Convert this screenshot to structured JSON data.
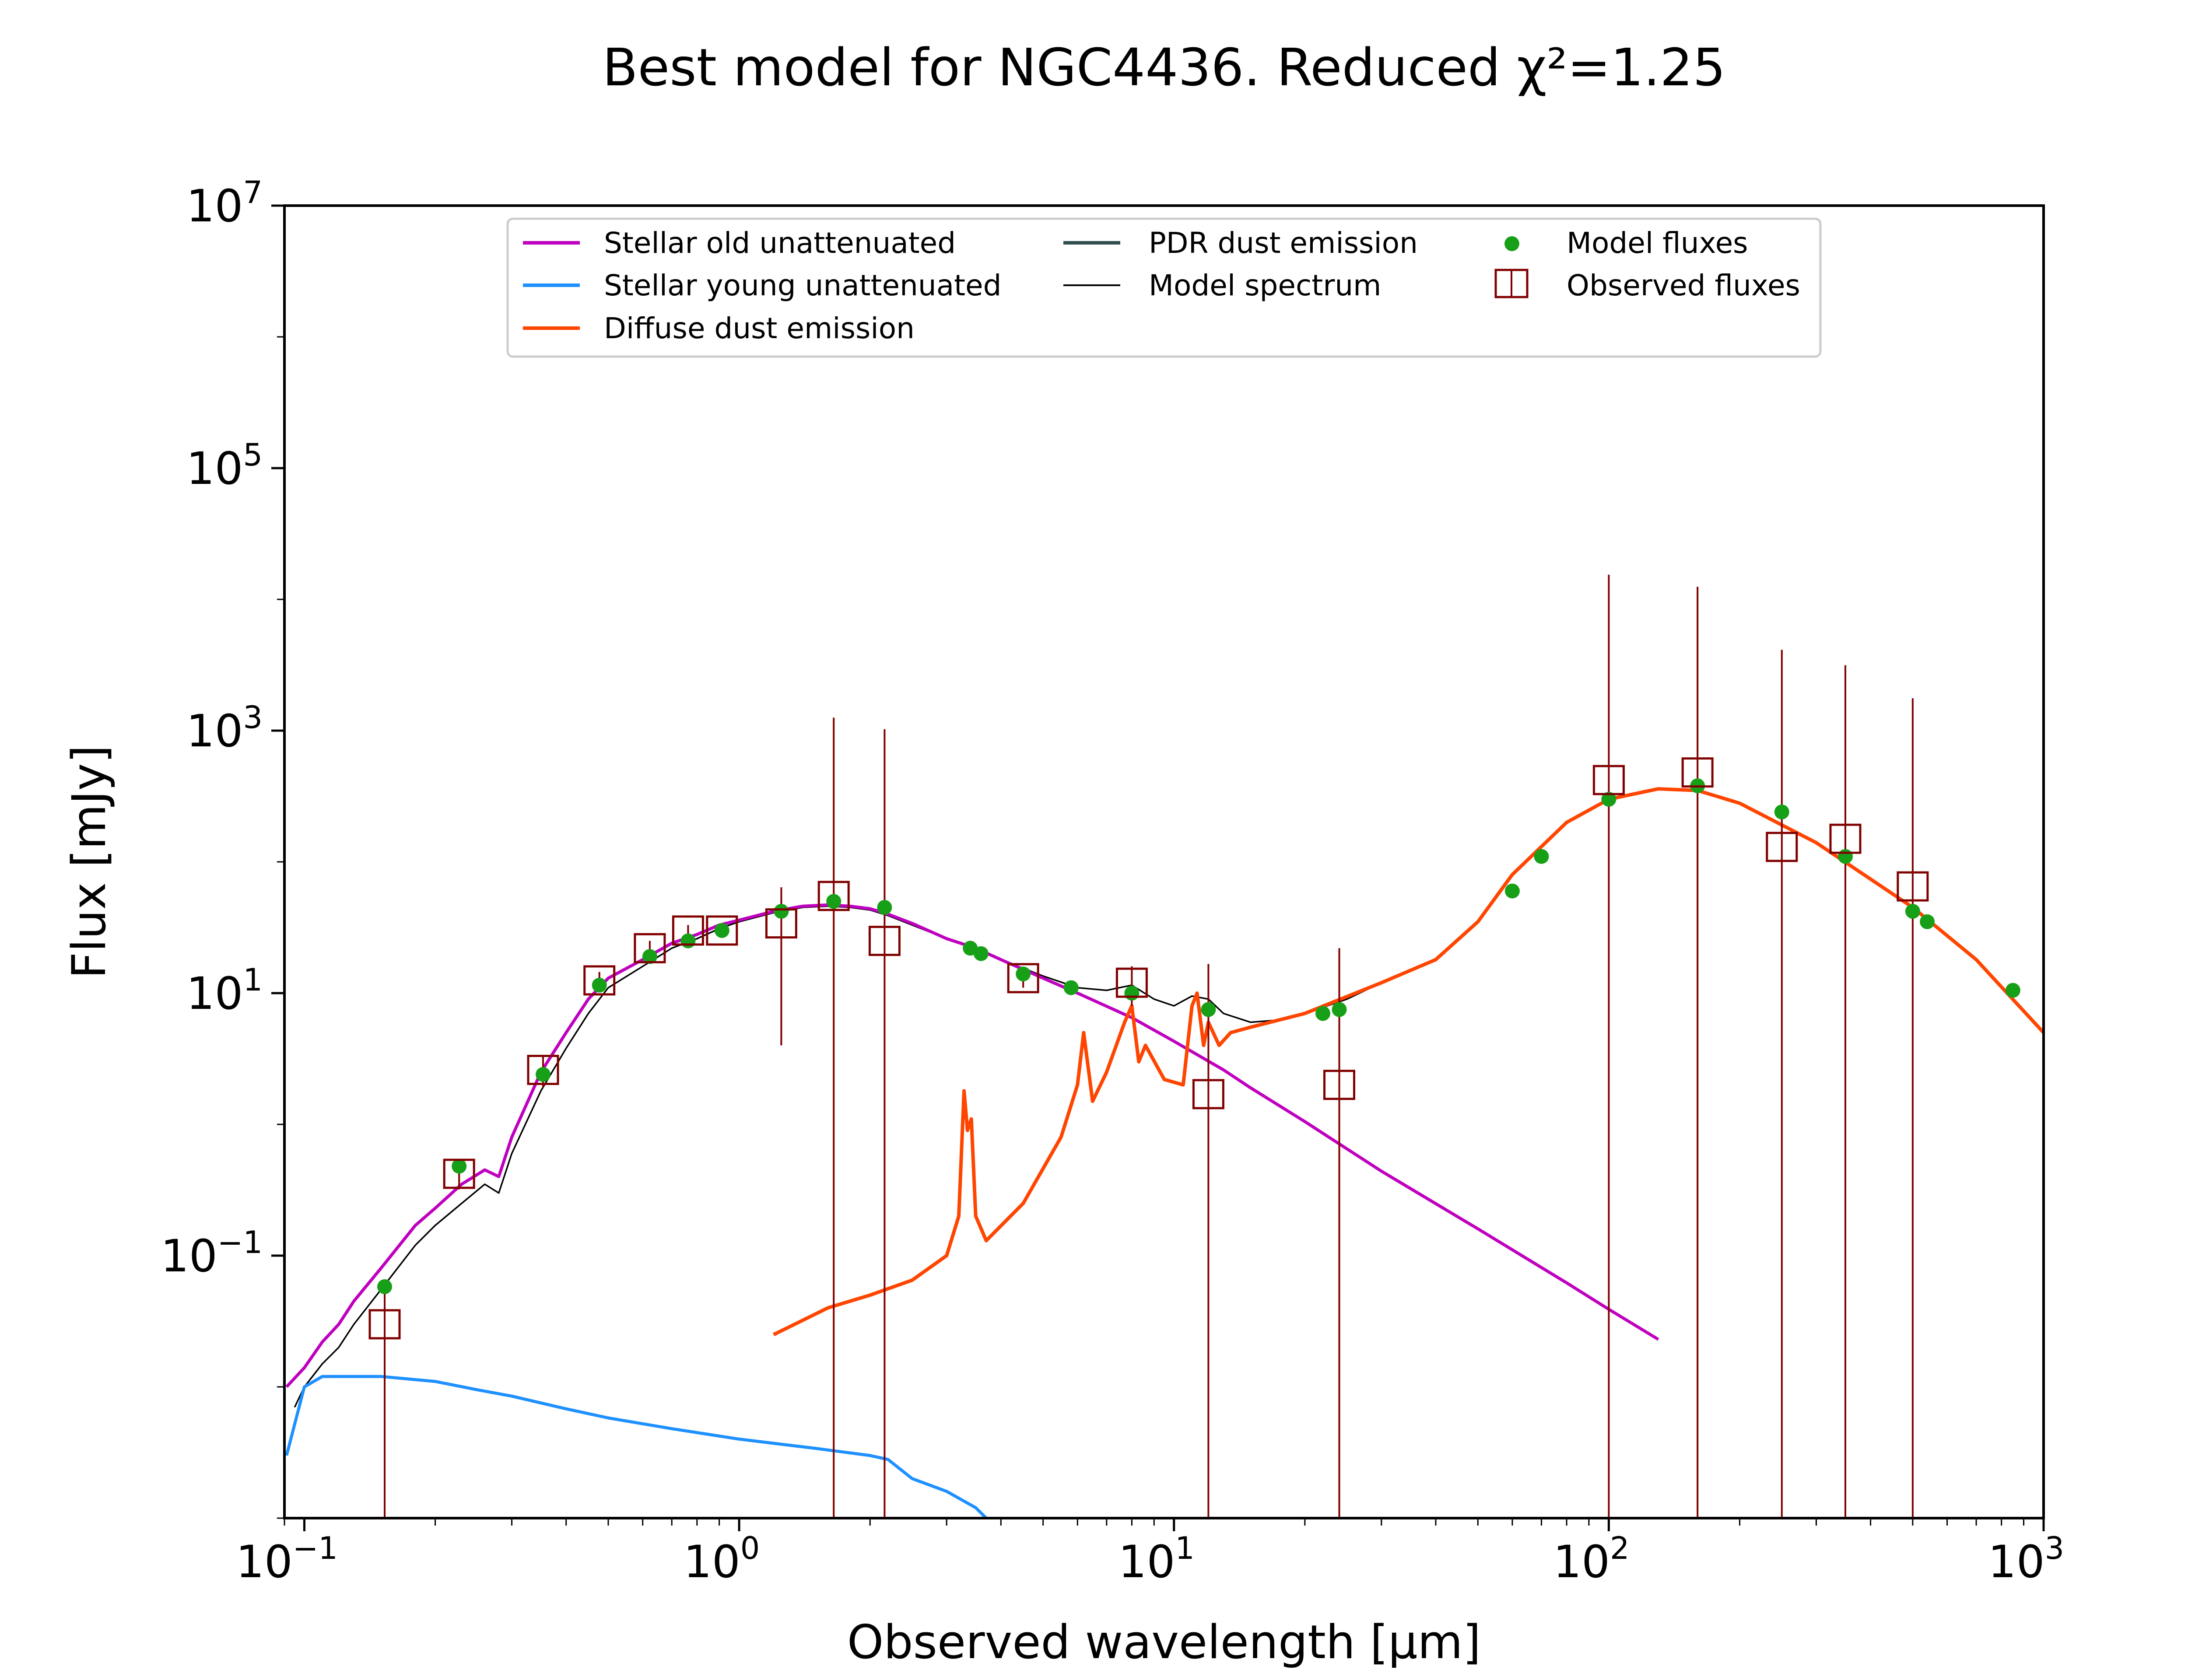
{
  "chart_data": {
    "type": "line",
    "title": "Best model for NGC4436. Reduced χ²=1.25",
    "xlabel": "Observed wavelength [μm]",
    "ylabel": "Flux [mJy]",
    "xscale": "log",
    "yscale": "log",
    "xlim": [
      0.09,
      1000
    ],
    "ylim": [
      0.001,
      10000000
    ],
    "x_ticks": [
      "10⁻¹",
      "10⁰",
      "10¹",
      "10²",
      "10³"
    ],
    "y_ticks": [
      "10⁻¹",
      "10¹",
      "10³",
      "10⁵",
      "10⁷"
    ],
    "grid": false,
    "legend_position": "top-center",
    "series": [
      {
        "name": "Stellar old unattenuated",
        "color": "#bf00bf",
        "x": [
          0.091,
          0.1,
          0.11,
          0.12,
          0.13,
          0.15,
          0.18,
          0.2,
          0.23,
          0.26,
          0.28,
          0.3,
          0.35,
          0.4,
          0.45,
          0.5,
          0.6,
          0.7,
          0.8,
          0.9,
          1.0,
          1.2,
          1.4,
          1.6,
          1.8,
          2.0,
          2.2,
          2.5,
          3.0,
          3.5,
          4.0,
          5.0,
          6.0,
          8.0,
          10.0,
          13.0,
          15.0,
          20.0,
          30.0,
          50.0,
          80.0,
          100.0,
          130.0
        ],
        "y": [
          0.01,
          0.014,
          0.022,
          0.03,
          0.045,
          0.08,
          0.17,
          0.23,
          0.35,
          0.45,
          0.4,
          0.8,
          2.5,
          5.0,
          9.0,
          13.0,
          18.0,
          24.0,
          28.0,
          33.0,
          36.0,
          42.0,
          46.0,
          47.0,
          46.0,
          44.0,
          40.0,
          34.0,
          26.0,
          22.0,
          18.0,
          13.0,
          10.0,
          6.5,
          4.3,
          2.6,
          1.9,
          1.05,
          0.44,
          0.16,
          0.062,
          0.039,
          0.023
        ]
      },
      {
        "name": "Stellar young unattenuated",
        "color": "#1e90ff",
        "x": [
          0.091,
          0.1,
          0.11,
          0.13,
          0.15,
          0.2,
          0.25,
          0.3,
          0.4,
          0.5,
          0.7,
          1.0,
          1.5,
          2.0,
          2.2,
          2.5,
          3.0,
          3.5,
          3.7
        ],
        "y": [
          0.003,
          0.01,
          0.012,
          0.012,
          0.012,
          0.011,
          0.0095,
          0.0085,
          0.0068,
          0.0058,
          0.0048,
          0.004,
          0.0034,
          0.003,
          0.0028,
          0.002,
          0.0016,
          0.0012,
          0.001
        ]
      },
      {
        "name": "Diffuse dust emission",
        "color": "#ff4500",
        "x": [
          1.2,
          1.6,
          2.0,
          2.5,
          3.0,
          3.2,
          3.29,
          3.35,
          3.42,
          3.5,
          3.7,
          4.5,
          5.5,
          6.0,
          6.2,
          6.5,
          7.0,
          7.7,
          8.0,
          8.3,
          8.6,
          9.5,
          10.5,
          11.0,
          11.3,
          11.7,
          12.0,
          12.7,
          13.5,
          15.0,
          20.0,
          30.0,
          40.0,
          50.0,
          60.0,
          80.0,
          100.0,
          130.0,
          160.0,
          200.0,
          300.0,
          500.0,
          700.0,
          1000.0
        ],
        "y": [
          0.025,
          0.04,
          0.05,
          0.065,
          0.1,
          0.2,
          1.8,
          0.9,
          1.1,
          0.2,
          0.13,
          0.25,
          0.8,
          2.0,
          5.0,
          1.5,
          2.5,
          6.0,
          8.0,
          3.0,
          4.0,
          2.2,
          2.0,
          8.0,
          10.0,
          4.0,
          6.0,
          4.0,
          5.0,
          5.5,
          7.0,
          12.0,
          18.0,
          35.0,
          80.0,
          200.0,
          300.0,
          360.0,
          350.0,
          280.0,
          140.0,
          45.0,
          18.0,
          5.0
        ]
      },
      {
        "name": "PDR dust emission",
        "color": "#2f4f4f",
        "x": [],
        "y": []
      },
      {
        "name": "Model spectrum",
        "color": "#000000",
        "x": [
          0.095,
          0.1,
          0.11,
          0.12,
          0.13,
          0.15,
          0.18,
          0.2,
          0.23,
          0.26,
          0.28,
          0.3,
          0.35,
          0.4,
          0.45,
          0.5,
          0.6,
          0.7,
          0.8,
          0.9,
          1.0,
          1.2,
          1.4,
          1.6,
          1.8,
          2.0,
          2.2,
          2.5,
          3.0,
          3.5,
          4.0,
          5.0,
          6.0,
          7.0,
          8.0,
          9.0,
          10.0,
          11.0,
          12.0,
          13.0,
          15.0,
          17.0,
          20.0,
          25.0,
          30.0,
          40.0,
          50.0,
          60.0,
          80.0,
          100.0,
          130.0,
          160.0,
          200.0,
          300.0,
          500.0,
          700.0,
          1000.0
        ],
        "y": [
          0.007,
          0.01,
          0.015,
          0.02,
          0.03,
          0.055,
          0.12,
          0.17,
          0.25,
          0.35,
          0.3,
          0.6,
          1.8,
          3.8,
          7.0,
          11.0,
          16.0,
          22.0,
          26.0,
          31.0,
          35.0,
          41.0,
          45.0,
          46.0,
          45.0,
          43.0,
          39.0,
          33.0,
          26.0,
          22.0,
          18.0,
          13.5,
          11.0,
          10.5,
          11.5,
          9.0,
          8.0,
          9.5,
          9.0,
          7.0,
          6.0,
          6.2,
          7.0,
          9.0,
          12.0,
          18.0,
          35.0,
          80.0,
          200.0,
          300.0,
          360.0,
          350.0,
          280.0,
          140.0,
          45.0,
          18.0,
          5.0
        ]
      }
    ],
    "model_fluxes": {
      "name": "Model fluxes",
      "color": "#17a017",
      "x": [
        0.153,
        0.227,
        0.354,
        0.477,
        0.623,
        0.763,
        0.913,
        1.25,
        1.65,
        2.16,
        3.4,
        3.6,
        4.5,
        5.8,
        8.0,
        12.0,
        22.0,
        24.0,
        60.0,
        70.0,
        100.0,
        160.0,
        250.0,
        350.0,
        500.0,
        540.0,
        850.0
      ],
      "y": [
        0.058,
        0.48,
        2.4,
        11.5,
        19.0,
        25.0,
        30.0,
        42.0,
        50.0,
        45.0,
        22.0,
        20.0,
        14.0,
        11.0,
        10.0,
        7.5,
        7.0,
        7.5,
        60.0,
        110.0,
        300.0,
        380.0,
        240.0,
        110.0,
        42.0,
        35.0,
        10.5
      ]
    },
    "observed_fluxes": {
      "name": "Observed fluxes",
      "color": "#800000",
      "x": [
        0.153,
        0.227,
        0.354,
        0.477,
        0.623,
        0.763,
        0.913,
        1.25,
        1.65,
        2.16,
        4.5,
        8.0,
        12.0,
        24.0,
        100.0,
        160.0,
        250.0,
        350.0,
        500.0
      ],
      "y": [
        0.03,
        0.42,
        2.6,
        12.5,
        22.0,
        30.0,
        30.0,
        34.0,
        55.0,
        25.0,
        13.0,
        12.0,
        1.7,
        2.0,
        420.0,
        480.0,
        130.0,
        150.0,
        65.0
      ],
      "err_upper": [
        0.03,
        0.1,
        0.7,
        2.0,
        3.0,
        3.0,
        3.0,
        30.0,
        1200.0,
        1000.0,
        2.0,
        4.0,
        15.0,
        20.0,
        15000.0,
        12000.0,
        4000.0,
        3000.0,
        1700.0
      ]
    }
  }
}
